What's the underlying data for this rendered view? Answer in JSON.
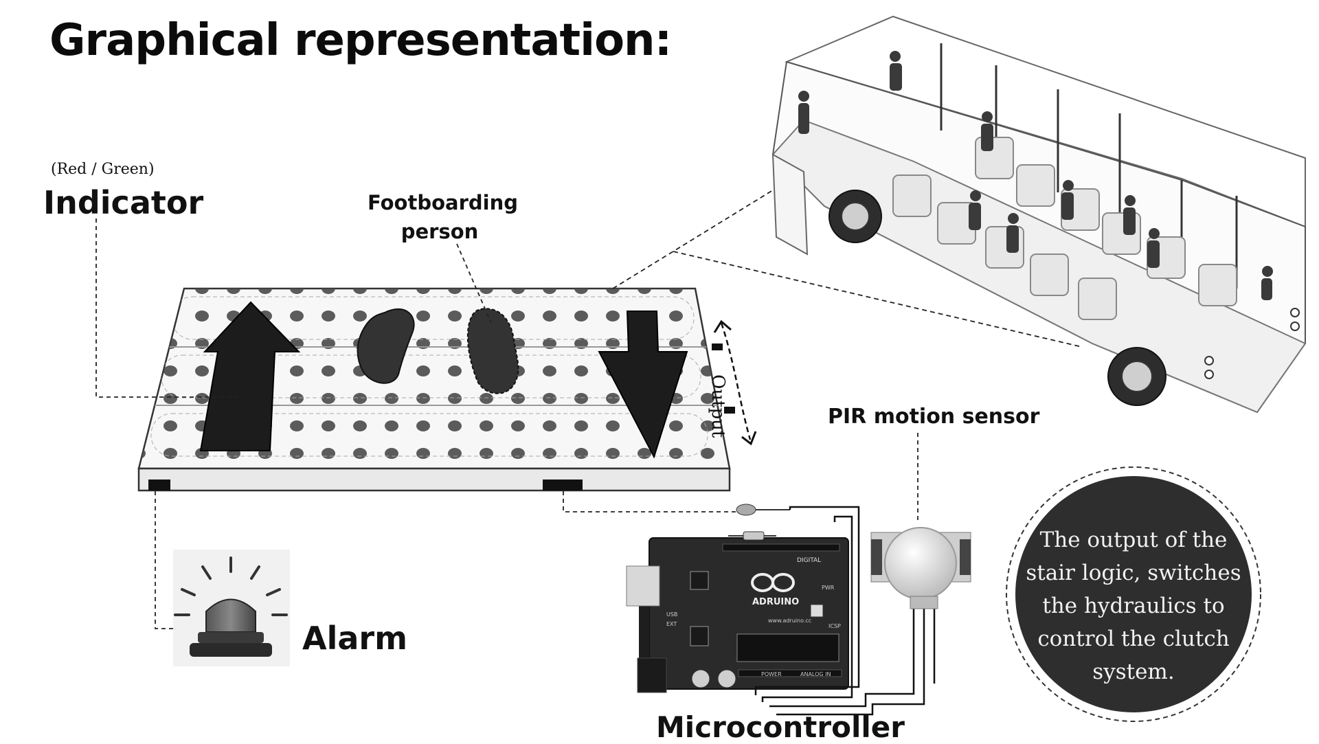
{
  "title": "Graphical representation:",
  "indicator": {
    "sub_label": "(Red / Green)",
    "label": "Indicator"
  },
  "footboarding_label": [
    "Footboarding",
    "person"
  ],
  "output_label": "Output",
  "pir_label": "PIR motion sensor",
  "alarm_label": "Alarm",
  "microcontroller_label": "Microcontroller",
  "board": {
    "brand": "ADRUINO",
    "url": "www.adruino.cc",
    "digital": "DIGITAL",
    "analog": "ANALOG IN",
    "power": "POWER",
    "icsp": "ICSP",
    "pwr": "PWR",
    "usb": "USB",
    "ext": "EXT"
  },
  "circle_text": [
    "The output of the",
    "stair logic, switches",
    "the hydraulics to",
    "control the clutch",
    "system."
  ],
  "colors": {
    "dark": "#2b2b2b",
    "arrow": "#1a1a1a",
    "blob": "#333333",
    "dots": "#4a4a4a",
    "circle_bg": "#2e2e2e"
  }
}
